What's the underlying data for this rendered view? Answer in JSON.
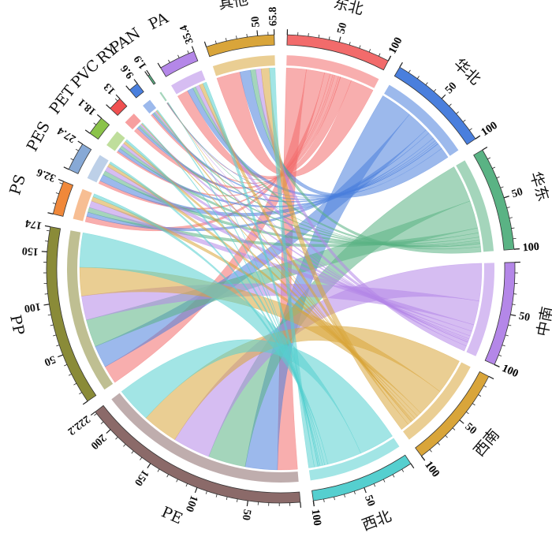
{
  "chart_data": {
    "type": "chord",
    "title": "",
    "sectors": [
      {
        "name": "东北",
        "total": 100,
        "color": "#f26b6b",
        "ticks": [
          0,
          50,
          100
        ],
        "end_label": "100"
      },
      {
        "name": "华北",
        "total": 100,
        "color": "#4a7fdd",
        "ticks": [
          0,
          50,
          100
        ],
        "end_label": "100"
      },
      {
        "name": "华东",
        "total": 100,
        "color": "#5ab384",
        "ticks": [
          0,
          50,
          100
        ],
        "end_label": "100"
      },
      {
        "name": "中南",
        "total": 100,
        "color": "#b487e8",
        "ticks": [
          0,
          50,
          100
        ],
        "end_label": "100"
      },
      {
        "name": "西南",
        "total": 100,
        "color": "#d9a53a",
        "ticks": [
          0,
          50,
          100
        ],
        "end_label": "100"
      },
      {
        "name": "西北",
        "total": 100,
        "color": "#55cfcf",
        "ticks": [
          0,
          50,
          100
        ],
        "end_label": "100"
      },
      {
        "name": "PE",
        "total": 222.2,
        "color": "#8b6a69",
        "ticks": [
          0,
          50,
          100,
          150,
          200
        ],
        "end_label": "222.2"
      },
      {
        "name": "PP",
        "total": 174,
        "color": "#8a8b38",
        "ticks": [
          0,
          50,
          100,
          150
        ],
        "end_label": "174"
      },
      {
        "name": "PS",
        "total": 32.6,
        "color": "#f0883a",
        "ticks": [
          0
        ],
        "end_label": "32.6"
      },
      {
        "name": "PES",
        "total": 27.4,
        "color": "#87a9d6",
        "ticks": [
          0
        ],
        "end_label": "27.4"
      },
      {
        "name": "PET",
        "total": 18.1,
        "color": "#8bc34a",
        "ticks": [
          0
        ],
        "end_label": "18.1"
      },
      {
        "name": "PVC",
        "total": 13,
        "color": "#f05050",
        "ticks": [
          0
        ],
        "end_label": "13"
      },
      {
        "name": "RY",
        "total": 9.6,
        "color": "#4a7fdd",
        "ticks": [
          0
        ],
        "end_label": "9.6"
      },
      {
        "name": "PAN",
        "total": 1.9,
        "color": "#5ab384",
        "ticks": [
          0
        ],
        "end_label": "1.9"
      },
      {
        "name": "PA",
        "total": 35.4,
        "color": "#b487e8",
        "ticks": [
          0
        ],
        "end_label": "35.4"
      },
      {
        "name": "其他",
        "total": 65.8,
        "color": "#d9a53a",
        "ticks": [
          0,
          50
        ],
        "end_label": "65.8"
      }
    ],
    "regions": [
      "东北",
      "华北",
      "华东",
      "中南",
      "西南",
      "西北"
    ],
    "polymers": [
      "PE",
      "PP",
      "PS",
      "PES",
      "PET",
      "PVC",
      "RY",
      "PAN",
      "PA",
      "其他"
    ],
    "matrix": [
      [
        22.3,
        20.5,
        6.2,
        3.3,
        2.0,
        4.5,
        2.0,
        0.3,
        12.5,
        26.4
      ],
      [
        36.0,
        25.0,
        4.8,
        7.5,
        3.5,
        2.5,
        2.0,
        0.3,
        6.5,
        11.9
      ],
      [
        42.0,
        31.0,
        5.5,
        4.8,
        3.5,
        2.0,
        1.5,
        0.3,
        3.5,
        5.9
      ],
      [
        42.0,
        27.0,
        7.5,
        5.5,
        3.5,
        2.0,
        1.7,
        0.3,
        4.5,
        6.0
      ],
      [
        40.0,
        32.0,
        5.0,
        3.8,
        3.0,
        1.0,
        1.2,
        0.3,
        4.4,
        9.3
      ],
      [
        39.9,
        38.5,
        3.6,
        2.5,
        2.6,
        1.0,
        1.2,
        0.4,
        4.0,
        6.3
      ]
    ]
  }
}
